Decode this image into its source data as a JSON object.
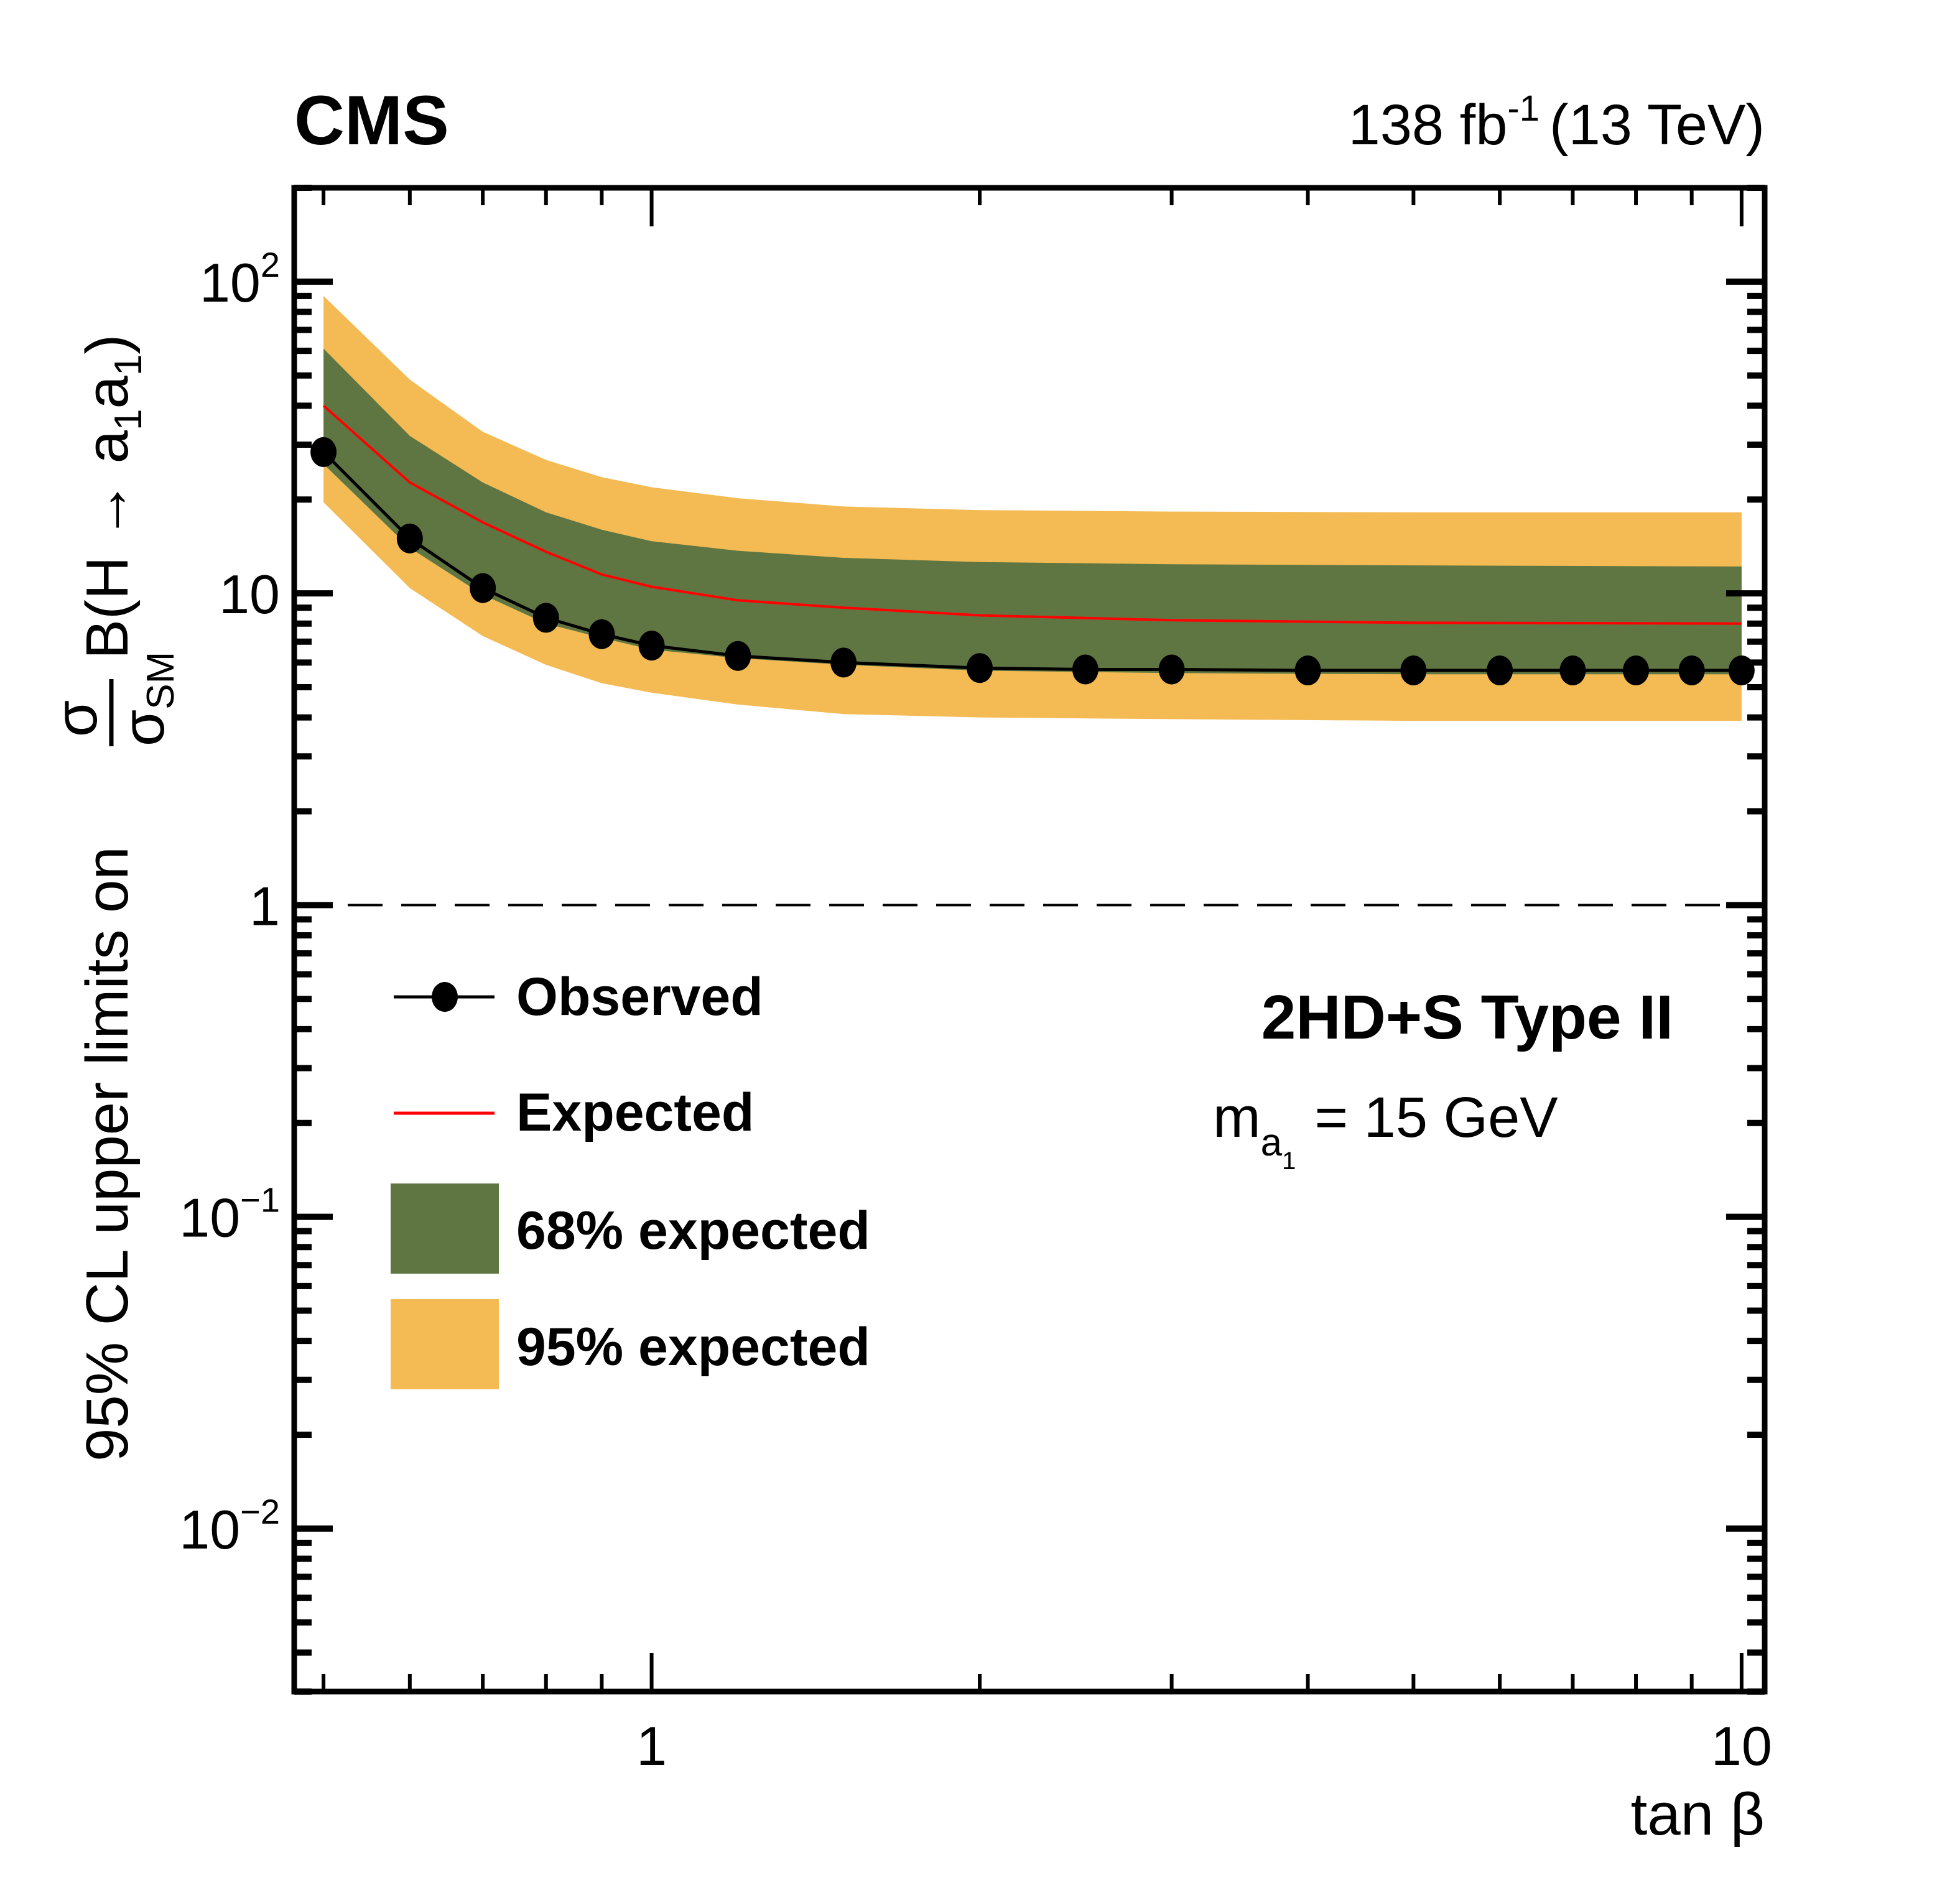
{
  "header": {
    "experiment": "CMS",
    "lumi": "138 fb",
    "lumi_sup": "-1",
    "energy": "(13 TeV)"
  },
  "annotations": {
    "model": "2HD+S Type II",
    "mass_prefix": "m",
    "mass_sub": "a",
    "mass_subsub": "1",
    "mass_value": "= 15 GeV"
  },
  "colors": {
    "band95": "#F4BB54",
    "band68": "#607642",
    "expected": "#FF0000",
    "observed": "#000000"
  },
  "chart_data": {
    "type": "line",
    "title": "CMS 138 fb^-1 (13 TeV)",
    "xlabel": "tan β",
    "ylabel": "95% CL upper limits on σ/σ_SM B(H → a1 a1)",
    "xscale": "log",
    "yscale": "log",
    "xlim": [
      0.47,
      10.5
    ],
    "ylim": [
      0.003,
      200
    ],
    "x_ticks": [
      {
        "v": 1,
        "label": "1"
      },
      {
        "v": 10,
        "label": "10"
      }
    ],
    "y_ticks": [
      {
        "v": 100,
        "label": "10",
        "sup": "2"
      },
      {
        "v": 10,
        "label": "10",
        "sup": ""
      },
      {
        "v": 1,
        "label": "1",
        "sup": ""
      },
      {
        "v": 0.1,
        "label": "10",
        "sup": "−1"
      },
      {
        "v": 0.01,
        "label": "10",
        "sup": "−2"
      }
    ],
    "reference_line": {
      "y": 1,
      "style": "dashed"
    },
    "legend": {
      "placement": "center-left",
      "entries": [
        "Observed",
        "Expected",
        "68% expected",
        "95% expected"
      ]
    },
    "observed": {
      "x": [
        0.5,
        0.6,
        0.7,
        0.8,
        0.9,
        1.0,
        1.2,
        1.5,
        2.0,
        2.5,
        3.0,
        4.0,
        5.0,
        6.0,
        7.0,
        8.0,
        9.0,
        10.0
      ],
      "y": [
        28.4,
        15.0,
        10.4,
        8.35,
        7.4,
        6.8,
        6.3,
        6.0,
        5.76,
        5.7,
        5.7,
        5.66,
        5.66,
        5.66,
        5.66,
        5.66,
        5.66,
        5.66
      ]
    },
    "expected": {
      "x": [
        0.5,
        0.6,
        0.7,
        0.8,
        0.9,
        1.0,
        1.2,
        1.5,
        2.0,
        3.0,
        5.0,
        10.0
      ],
      "median": [
        40,
        22.7,
        16.9,
        13.6,
        11.5,
        10.5,
        9.5,
        9.0,
        8.5,
        8.2,
        8.05,
        8.0
      ],
      "band68_low": [
        26,
        14,
        9.9,
        8.0,
        7.2,
        6.6,
        6.2,
        5.9,
        5.65,
        5.55,
        5.5,
        5.5
      ],
      "band68_high": [
        61,
        32,
        22.7,
        18.2,
        16,
        14.7,
        13.7,
        13,
        12.6,
        12.4,
        12.3,
        12.2
      ],
      "band95_low": [
        19.6,
        10.4,
        7.3,
        5.9,
        5.15,
        4.8,
        4.4,
        4.1,
        4.0,
        3.95,
        3.9,
        3.9
      ],
      "band95_high": [
        90,
        48.5,
        33,
        26.8,
        23.6,
        21.9,
        20.2,
        19,
        18.5,
        18.3,
        18.2,
        18.2
      ]
    }
  }
}
